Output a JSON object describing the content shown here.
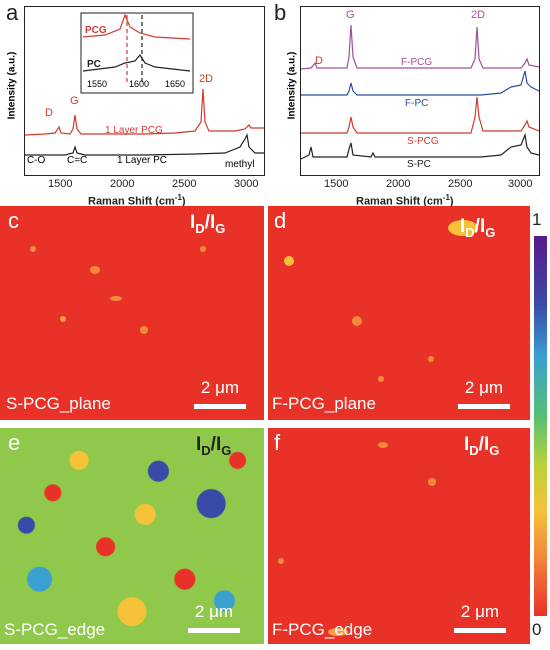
{
  "panel_a": {
    "letter": "a",
    "ylabel": "Intensity (a.u.)",
    "xlabel": "Raman Shift (cm",
    "xlabel_sup": "-1",
    "xlabel_end": ")",
    "xticks": [
      "1500",
      "2000",
      "2500",
      "3000"
    ],
    "peaks": {
      "D": "D",
      "G": "G",
      "twoD": "2D",
      "co": "C-O",
      "cc": "C=C",
      "methyl": "methyl"
    },
    "series_labels": {
      "pcg": "1 Layer PCG",
      "pc": "1 Layer PC"
    },
    "inset": {
      "pcg": "PCG",
      "pc": "PC",
      "xticks": [
        "1550",
        "1600",
        "1650"
      ]
    }
  },
  "panel_b": {
    "letter": "b",
    "ylabel": "Intensity (a.u.)",
    "xlabel": "Raman Shift (cm",
    "xlabel_sup": "-1",
    "xlabel_end": ")",
    "xticks": [
      "1500",
      "2000",
      "2500",
      "3000"
    ],
    "peaks": {
      "D": "D",
      "G": "G",
      "twoD": "2D"
    },
    "series": [
      {
        "name": "F-PCG",
        "color": "#a0509a"
      },
      {
        "name": "F-PC",
        "color": "#2a4d9c"
      },
      {
        "name": "S-PCG",
        "color": "#d03a30"
      },
      {
        "name": "S-PC",
        "color": "#222222"
      }
    ]
  },
  "maps": {
    "title_main": "I",
    "title_sub1": "D",
    "title_slash": "/I",
    "title_sub2": "G",
    "scale_label": "2 μm",
    "c": {
      "letter": "c",
      "name": "S-PCG_plane"
    },
    "d": {
      "letter": "d",
      "name": "F-PCG_plane"
    },
    "e": {
      "letter": "e",
      "name": "S-PCG_edge"
    },
    "f": {
      "letter": "f",
      "name": "F-PCG_edge"
    }
  },
  "colorbar": {
    "max": "1",
    "min": "0"
  },
  "chart_data": [
    {
      "type": "line",
      "title": "",
      "xlabel": "Raman Shift (cm-1)",
      "ylabel": "Intensity (a.u.)",
      "xlim": [
        1200,
        3200
      ],
      "series": [
        {
          "name": "1 Layer PCG",
          "x": [
            1340,
            1580,
            2680
          ],
          "y": [
            0.2,
            0.45,
            1.0
          ]
        },
        {
          "name": "1 Layer PC",
          "x": [
            1600,
            3050
          ],
          "y": [
            0.15,
            0.3
          ]
        }
      ],
      "inset": {
        "xlim": [
          1520,
          1680
        ],
        "series": [
          {
            "name": "PCG",
            "peak": 1587
          },
          {
            "name": "PC",
            "peak": 1605
          }
        ]
      }
    },
    {
      "type": "line",
      "title": "",
      "xlabel": "Raman Shift (cm-1)",
      "ylabel": "Intensity (a.u.)",
      "xlim": [
        1200,
        3200
      ],
      "series": [
        {
          "name": "F-PCG",
          "peaks": [
            1340,
            1580,
            2680,
            3050
          ]
        },
        {
          "name": "F-PC",
          "peaks": [
            1580,
            3050
          ]
        },
        {
          "name": "S-PCG",
          "peaks": [
            1580,
            2680,
            3050
          ]
        },
        {
          "name": "S-PC",
          "peaks": [
            1580,
            3050
          ]
        }
      ]
    }
  ]
}
